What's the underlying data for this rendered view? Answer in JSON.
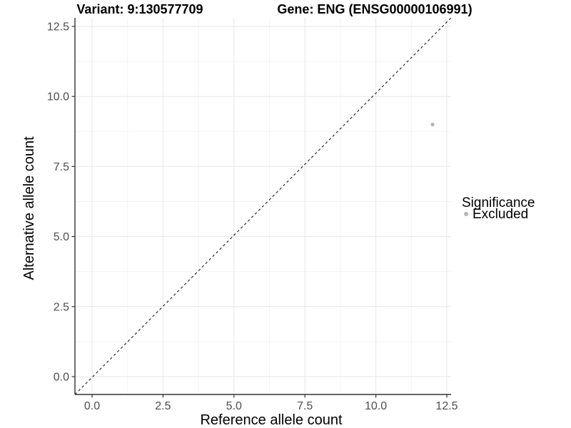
{
  "chart_data": {
    "type": "scatter",
    "title_left": "Variant: 9:130577709",
    "title_right": "Gene: ENG (ENSG00000106991)",
    "xlabel": "Reference allele count",
    "ylabel": "Alternative allele count",
    "tick_values": [
      0,
      2.5,
      5,
      7.5,
      10,
      12.5
    ],
    "x_tick_labels": [
      "0.0",
      "2.5",
      "5.0",
      "7.5",
      "10.0",
      "12.5"
    ],
    "y_tick_labels": [
      "0.0",
      "2.5",
      "5.0",
      "7.5",
      "10.0",
      "12.5"
    ],
    "xlim": [
      -0.6,
      12.65
    ],
    "ylim": [
      -0.64,
      13.1
    ],
    "grid": {
      "major": true,
      "minor": true
    },
    "points": [
      {
        "x": 12,
        "y": 9,
        "series": "Excluded"
      }
    ],
    "reference_line": {
      "type": "identity",
      "slope": 1,
      "intercept": 0,
      "style": "dashed"
    },
    "legend": {
      "title": "Significance",
      "position": "right",
      "entries": [
        {
          "label": "Excluded",
          "color": "#b5b5b5"
        }
      ]
    },
    "colors": {
      "point": "#b5b5b5",
      "grid_major": "#e7e7e7",
      "grid_minor": "#f3f3f3",
      "axis_line": "#333333",
      "tick_mark": "#333333",
      "tick_label": "#4d4d4d",
      "reference_line": "#1a1a1a",
      "background": "#ffffff"
    }
  }
}
